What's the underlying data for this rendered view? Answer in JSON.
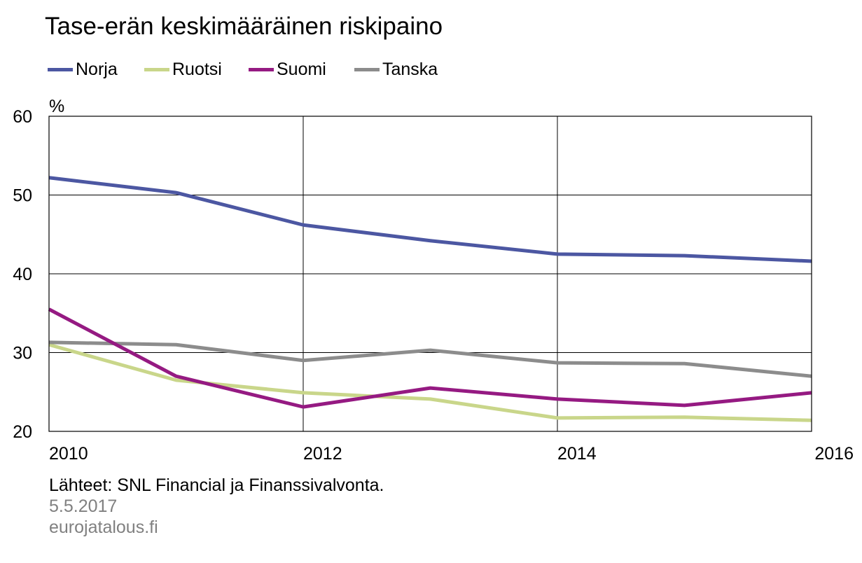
{
  "title": "Tase-erän keskimääräinen riskipaino",
  "source_note": "Lähteet: SNL Financial ja Finanssivalvonta.",
  "date": "5.5.2017",
  "site": "eurojatalous.fi",
  "chart_data": {
    "type": "line",
    "title": "Tase-erän keskimääräinen riskipaino",
    "ylabel": "%",
    "xlabel": "",
    "xlim": [
      2010,
      2016
    ],
    "ylim": [
      20,
      60
    ],
    "x_ticks": [
      "2010",
      "2012",
      "2014",
      "2016"
    ],
    "y_ticks": [
      "20",
      "30",
      "40",
      "50",
      "60"
    ],
    "grid": true,
    "legend_position": "top-left",
    "x": [
      2010,
      2011,
      2012,
      2013,
      2014,
      2015,
      2016
    ],
    "series": [
      {
        "name": "Norja",
        "color": "#4c57a2",
        "values": [
          52.2,
          50.3,
          46.2,
          44.2,
          42.5,
          42.3,
          41.6
        ]
      },
      {
        "name": "Ruotsi",
        "color": "#c9d68a",
        "values": [
          31.0,
          26.5,
          24.9,
          24.1,
          21.7,
          21.8,
          21.4
        ]
      },
      {
        "name": "Suomi",
        "color": "#951a82",
        "values": [
          35.5,
          27.0,
          23.1,
          25.5,
          24.1,
          23.3,
          24.9
        ]
      },
      {
        "name": "Tanska",
        "color": "#8c8c8c",
        "values": [
          31.3,
          31.0,
          29.0,
          30.3,
          28.7,
          28.6,
          27.0
        ]
      }
    ]
  }
}
